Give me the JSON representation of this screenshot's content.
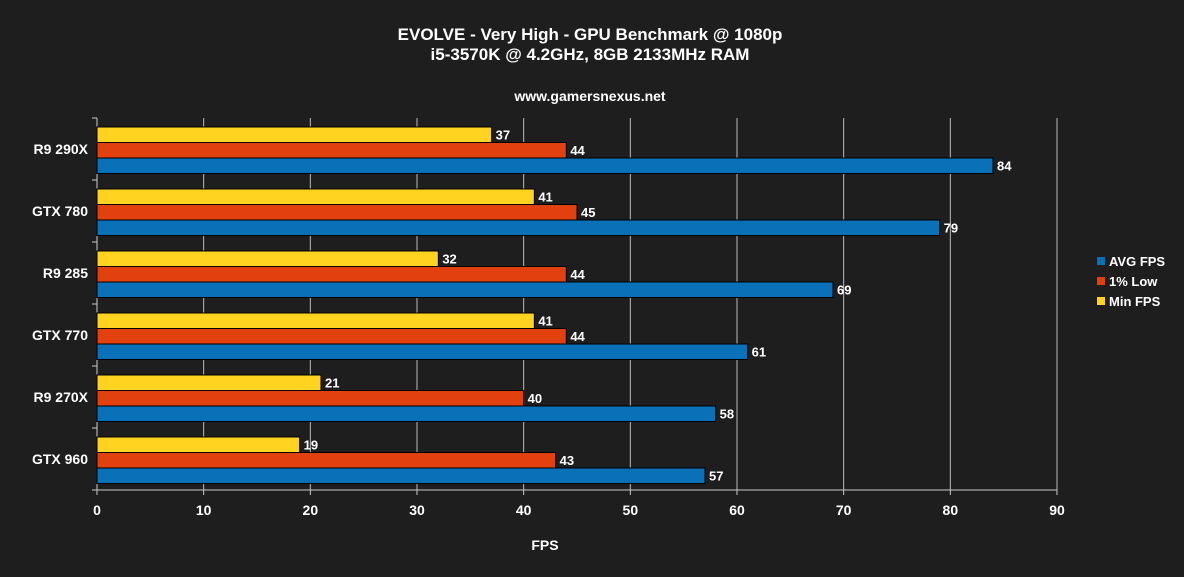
{
  "chart_data": {
    "type": "bar",
    "orientation": "horizontal",
    "title": "EVOLVE - Very High - GPU Benchmark @ 1080p",
    "subtitle": "i5-3570K @ 4.2GHz, 8GB 2133MHz RAM",
    "source": "www.gamersnexus.net",
    "xlabel": "FPS",
    "ylabel": "",
    "xlim": [
      0,
      90
    ],
    "xticks": [
      0,
      10,
      20,
      30,
      40,
      50,
      60,
      70,
      80,
      90
    ],
    "grid": true,
    "legend_position": "right",
    "categories": [
      "R9 290X",
      "GTX 780",
      "R9 285",
      "GTX 770",
      "R9 270X",
      "GTX 960"
    ],
    "series": [
      {
        "name": "AVG FPS",
        "color": "#0a70b8",
        "values": [
          84,
          79,
          69,
          61,
          58,
          57
        ]
      },
      {
        "name": "1% Low",
        "color": "#e2400f",
        "values": [
          44,
          45,
          44,
          44,
          40,
          43
        ]
      },
      {
        "name": "Min FPS",
        "color": "#ffd320",
        "values": [
          37,
          41,
          32,
          41,
          21,
          19
        ]
      }
    ]
  }
}
